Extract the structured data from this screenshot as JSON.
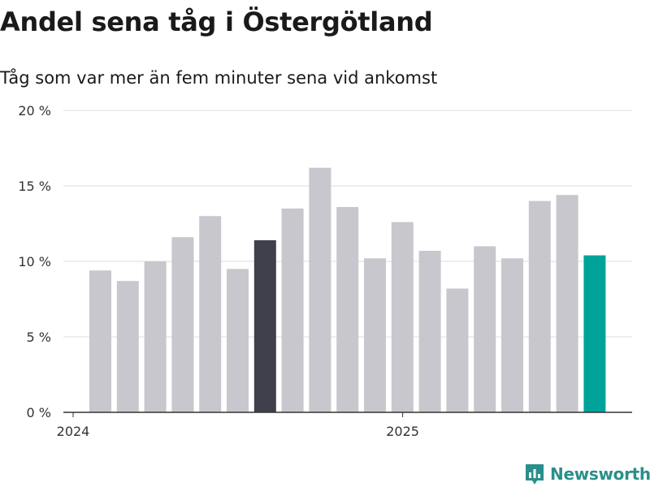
{
  "title": "Andel sena tåg i Östergötland",
  "subtitle": "Tåg som var mer än fem minuter sena vid ankomst",
  "brand": "Newsworthy",
  "colors": {
    "default_bar": "#c8c7cd",
    "highlight_bar": "#403f4c",
    "latest_bar": "#00a39a",
    "grid": "#dcdcdc",
    "axis": "#333333",
    "brand": "#2a8f8a"
  },
  "chart_data": {
    "type": "bar",
    "y_tick_labels": [
      "0 %",
      "5 %",
      "10 %",
      "15 %",
      "20 %"
    ],
    "y_ticks": [
      0,
      5,
      10,
      15,
      20
    ],
    "ylim": [
      0,
      20
    ],
    "x_tick_labels": [
      {
        "label": "2024",
        "index": 0
      },
      {
        "label": "2025",
        "index": 12
      }
    ],
    "values": [
      9.4,
      8.7,
      10.0,
      11.6,
      13.0,
      9.5,
      11.4,
      13.5,
      16.2,
      13.6,
      10.2,
      12.6,
      10.7,
      8.2,
      11.0,
      10.2,
      14.0,
      14.4,
      10.4
    ],
    "bar_colors": [
      "default",
      "default",
      "default",
      "default",
      "default",
      "default",
      "highlight",
      "default",
      "default",
      "default",
      "default",
      "default",
      "default",
      "default",
      "default",
      "default",
      "default",
      "default",
      "latest"
    ],
    "grid": true
  }
}
